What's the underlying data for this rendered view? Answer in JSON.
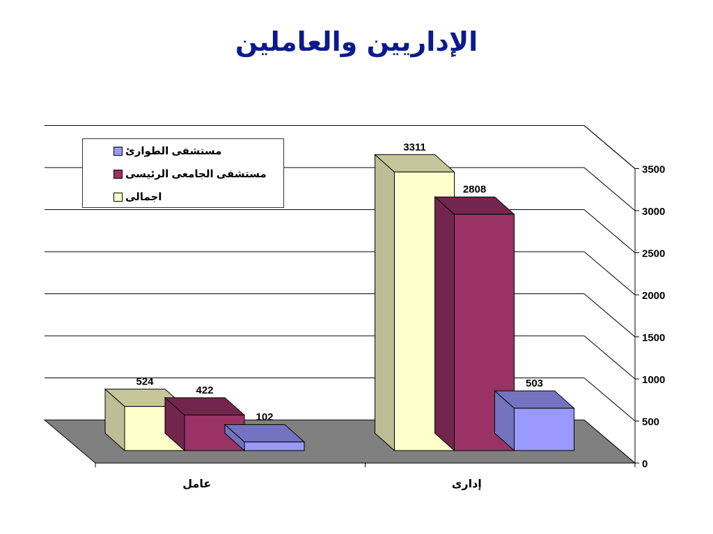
{
  "slide": {
    "title": "الإداريين والعاملين"
  },
  "legend": [
    {
      "label": "مستشفى الطوارئ",
      "color": "#9999ff"
    },
    {
      "label": "مستشفى الجامعى الرئيسى",
      "color": "#993366"
    },
    {
      "label": "اجمالى",
      "color": "#ffffcc"
    }
  ],
  "chart_data": {
    "type": "bar",
    "categories": [
      "عامل",
      "إدارى"
    ],
    "series": [
      {
        "name": "اجمالى",
        "values": [
          524,
          3311
        ]
      },
      {
        "name": "مستشفى الجامعى الرئيسى",
        "values": [
          422,
          2808
        ]
      },
      {
        "name": "مستشفى الطوارئ",
        "values": [
          102,
          503
        ]
      }
    ],
    "ylim": [
      0,
      3500
    ],
    "yticks": [
      0,
      500,
      1000,
      1500,
      2000,
      2500,
      3000,
      3500
    ],
    "grid": true,
    "legend_position": "top-left",
    "style": "3d-clustered-column"
  }
}
